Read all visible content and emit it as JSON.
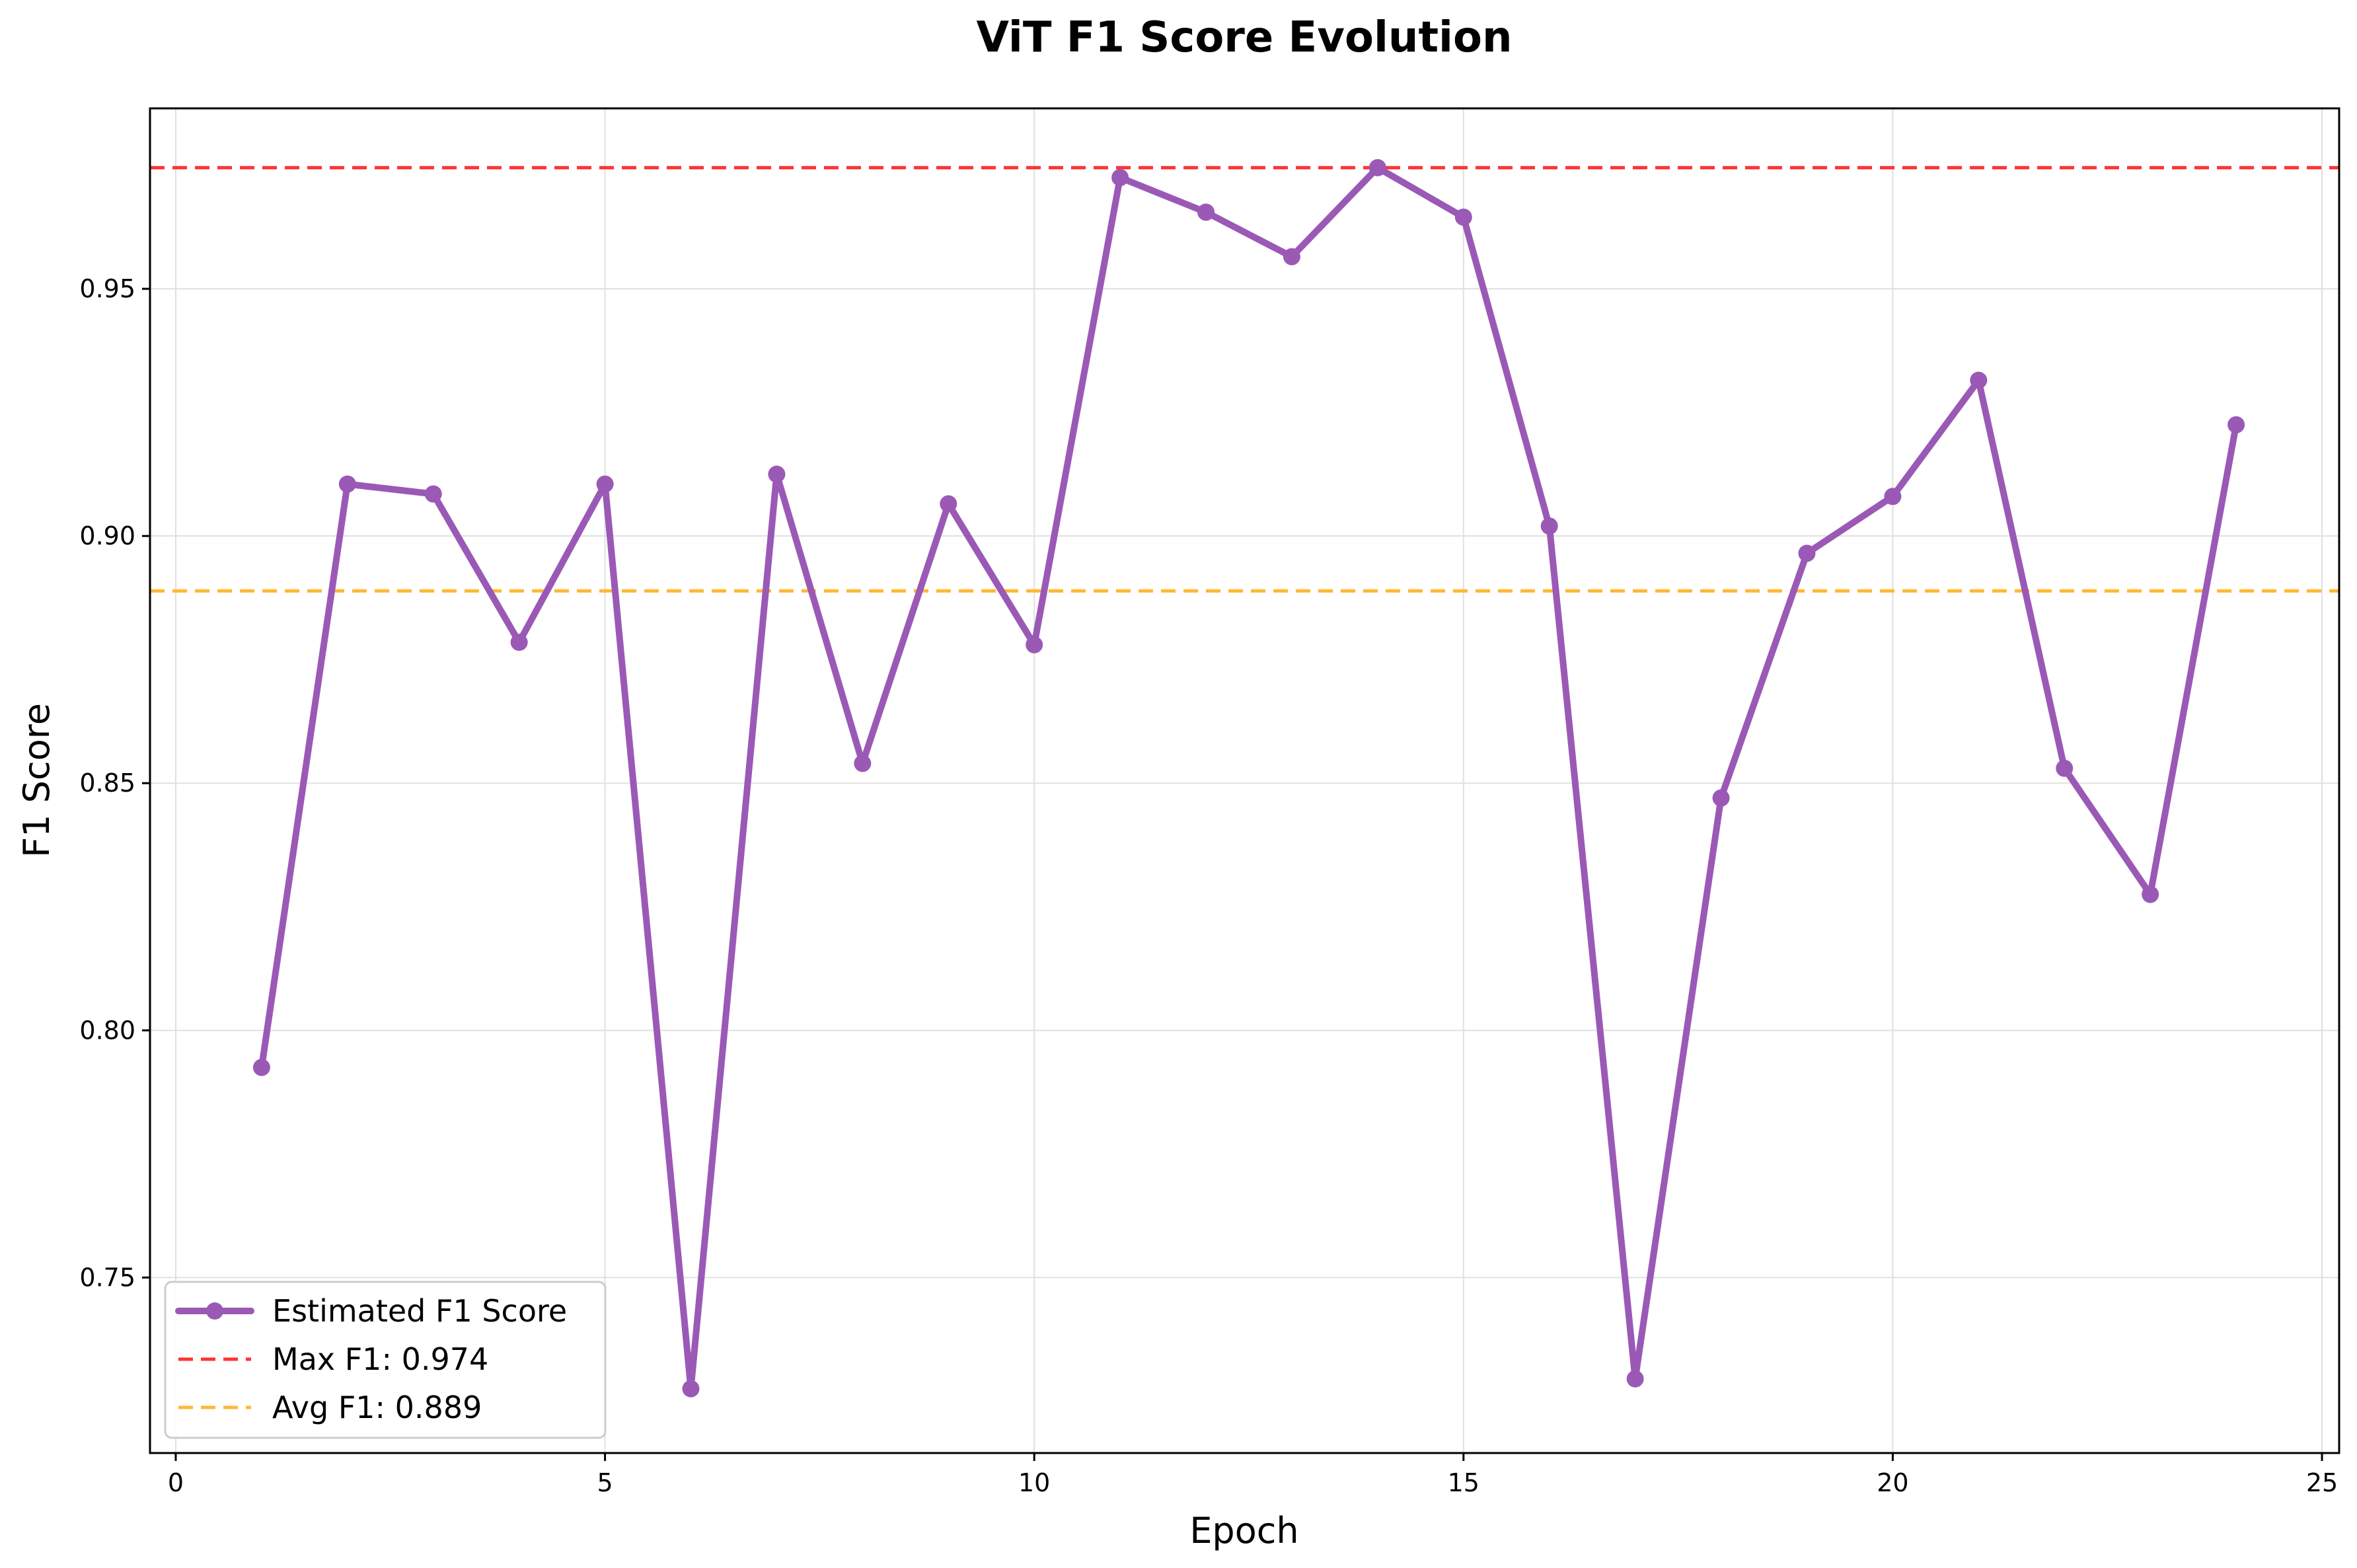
{
  "chart_data": {
    "type": "line",
    "title": "ViT F1 Score Evolution",
    "xlabel": "Epoch",
    "ylabel": "F1 Score",
    "xlim": [
      -0.3,
      25.2
    ],
    "ylim": [
      0.7145,
      0.9865
    ],
    "xticks": [
      0,
      5,
      10,
      15,
      20,
      25
    ],
    "xtick_labels": [
      "0",
      "5",
      "10",
      "15",
      "20",
      "25"
    ],
    "yticks": [
      0.75,
      0.8,
      0.85,
      0.9,
      0.95
    ],
    "ytick_labels": [
      "0.75",
      "0.80",
      "0.85",
      "0.90",
      "0.95"
    ],
    "grid": true,
    "legend_position": "lower-left",
    "series": [
      {
        "name": "Estimated F1 Score",
        "color": "#9b59b6",
        "marker": "circle",
        "x": [
          1,
          2,
          3,
          4,
          5,
          6,
          7,
          8,
          9,
          10,
          11,
          12,
          13,
          14,
          15,
          16,
          17,
          18,
          19,
          20,
          21,
          22,
          23,
          24
        ],
        "values": [
          0.7925,
          0.9105,
          0.9085,
          0.8785,
          0.9105,
          0.7275,
          0.9125,
          0.854,
          0.9065,
          0.878,
          0.9725,
          0.9655,
          0.9565,
          0.9745,
          0.9645,
          0.902,
          0.7295,
          0.847,
          0.8965,
          0.908,
          0.9315,
          0.853,
          0.8275,
          0.9225
        ]
      }
    ],
    "reference_lines": [
      {
        "label": "Max F1: 0.974",
        "value": 0.9745,
        "color": "#ff3333",
        "style": "dashed"
      },
      {
        "label": "Avg F1: 0.889",
        "value": 0.8889,
        "color": "#ffb833",
        "style": "dashed"
      }
    ]
  }
}
